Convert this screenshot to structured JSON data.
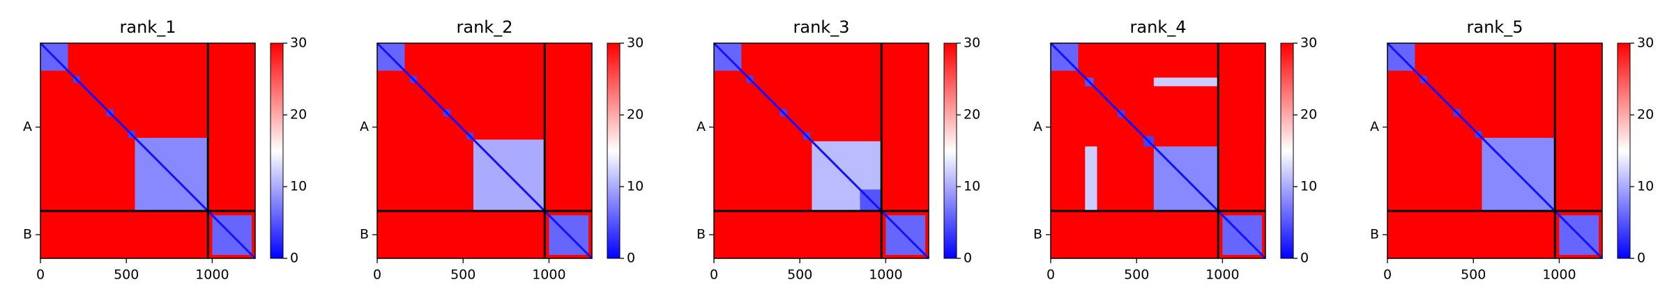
{
  "chart_data": [
    {
      "type": "heatmap",
      "title": "rank_1",
      "xlim": [
        0,
        1250
      ],
      "ylim": [
        1250,
        0
      ],
      "xticks": [
        0,
        500,
        1000
      ],
      "chains": [
        "A",
        "B"
      ],
      "chain_breaks": [
        975
      ],
      "clim": [
        0,
        30
      ],
      "cticks": [
        0,
        10,
        20,
        30
      ],
      "colormap": [
        "#0000ff",
        "#ffffff",
        "#ff0000"
      ],
      "background": 30,
      "diagonal": 1,
      "regions": [
        {
          "x": [
            0,
            160
          ],
          "y": [
            0,
            160
          ],
          "value": 6
        },
        {
          "x": [
            190,
            230
          ],
          "y": [
            190,
            230
          ],
          "value": 4
        },
        {
          "x": [
            385,
            425
          ],
          "y": [
            385,
            425
          ],
          "value": 4
        },
        {
          "x": [
            510,
            550
          ],
          "y": [
            510,
            550
          ],
          "value": 4
        },
        {
          "x": [
            550,
            975
          ],
          "y": [
            550,
            975
          ],
          "value": 8
        },
        {
          "x": [
            1000,
            1230
          ],
          "y": [
            1000,
            1230
          ],
          "value": 6
        }
      ]
    },
    {
      "type": "heatmap",
      "title": "rank_2",
      "xlim": [
        0,
        1250
      ],
      "ylim": [
        1250,
        0
      ],
      "xticks": [
        0,
        500,
        1000
      ],
      "chains": [
        "A",
        "B"
      ],
      "chain_breaks": [
        975
      ],
      "clim": [
        0,
        30
      ],
      "cticks": [
        0,
        10,
        20,
        30
      ],
      "colormap": [
        "#0000ff",
        "#ffffff",
        "#ff0000"
      ],
      "background": 30,
      "diagonal": 1,
      "regions": [
        {
          "x": [
            0,
            160
          ],
          "y": [
            0,
            160
          ],
          "value": 6
        },
        {
          "x": [
            190,
            230
          ],
          "y": [
            190,
            230
          ],
          "value": 4
        },
        {
          "x": [
            385,
            425
          ],
          "y": [
            385,
            425
          ],
          "value": 4
        },
        {
          "x": [
            520,
            560
          ],
          "y": [
            520,
            560
          ],
          "value": 4
        },
        {
          "x": [
            560,
            975
          ],
          "y": [
            560,
            975
          ],
          "value": 10
        },
        {
          "x": [
            1000,
            1230
          ],
          "y": [
            1000,
            1230
          ],
          "value": 6
        }
      ]
    },
    {
      "type": "heatmap",
      "title": "rank_3",
      "xlim": [
        0,
        1250
      ],
      "ylim": [
        1250,
        0
      ],
      "xticks": [
        0,
        500,
        1000
      ],
      "chains": [
        "A",
        "B"
      ],
      "chain_breaks": [
        975
      ],
      "clim": [
        0,
        30
      ],
      "cticks": [
        0,
        10,
        20,
        30
      ],
      "colormap": [
        "#0000ff",
        "#ffffff",
        "#ff0000"
      ],
      "background": 30,
      "diagonal": 1,
      "regions": [
        {
          "x": [
            0,
            160
          ],
          "y": [
            0,
            160
          ],
          "value": 6
        },
        {
          "x": [
            190,
            230
          ],
          "y": [
            190,
            230
          ],
          "value": 4
        },
        {
          "x": [
            385,
            425
          ],
          "y": [
            385,
            425
          ],
          "value": 4
        },
        {
          "x": [
            520,
            560
          ],
          "y": [
            520,
            560
          ],
          "value": 4
        },
        {
          "x": [
            570,
            975
          ],
          "y": [
            570,
            975
          ],
          "value": 11
        },
        {
          "x": [
            850,
            975
          ],
          "y": [
            850,
            975
          ],
          "value": 5
        },
        {
          "x": [
            1000,
            1230
          ],
          "y": [
            1000,
            1230
          ],
          "value": 6
        }
      ]
    },
    {
      "type": "heatmap",
      "title": "rank_4",
      "xlim": [
        0,
        1250
      ],
      "ylim": [
        1250,
        0
      ],
      "xticks": [
        0,
        500,
        1000
      ],
      "chains": [
        "A",
        "B"
      ],
      "chain_breaks": [
        975
      ],
      "clim": [
        0,
        30
      ],
      "cticks": [
        0,
        10,
        20,
        30
      ],
      "colormap": [
        "#0000ff",
        "#ffffff",
        "#ff0000"
      ],
      "background": 30,
      "diagonal": 1,
      "regions": [
        {
          "x": [
            0,
            160
          ],
          "y": [
            0,
            160
          ],
          "value": 6
        },
        {
          "x": [
            200,
            250
          ],
          "y": [
            200,
            250
          ],
          "value": 5
        },
        {
          "x": [
            390,
            430
          ],
          "y": [
            390,
            430
          ],
          "value": 4
        },
        {
          "x": [
            540,
            600
          ],
          "y": [
            540,
            600
          ],
          "value": 4
        },
        {
          "x": [
            600,
            975
          ],
          "y": [
            600,
            975
          ],
          "value": 8
        },
        {
          "x": [
            600,
            975
          ],
          "y": [
            200,
            250
          ],
          "value": 12
        },
        {
          "x": [
            200,
            270
          ],
          "y": [
            600,
            975
          ],
          "value": 12
        },
        {
          "x": [
            1000,
            1230
          ],
          "y": [
            1000,
            1230
          ],
          "value": 6
        }
      ]
    },
    {
      "type": "heatmap",
      "title": "rank_5",
      "xlim": [
        0,
        1250
      ],
      "ylim": [
        1250,
        0
      ],
      "xticks": [
        0,
        500,
        1000
      ],
      "chains": [
        "A",
        "B"
      ],
      "chain_breaks": [
        975
      ],
      "clim": [
        0,
        30
      ],
      "cticks": [
        0,
        10,
        20,
        30
      ],
      "colormap": [
        "#0000ff",
        "#ffffff",
        "#ff0000"
      ],
      "background": 30,
      "diagonal": 1,
      "regions": [
        {
          "x": [
            0,
            160
          ],
          "y": [
            0,
            160
          ],
          "value": 6
        },
        {
          "x": [
            190,
            230
          ],
          "y": [
            190,
            230
          ],
          "value": 4
        },
        {
          "x": [
            385,
            425
          ],
          "y": [
            385,
            425
          ],
          "value": 4
        },
        {
          "x": [
            510,
            550
          ],
          "y": [
            510,
            550
          ],
          "value": 4
        },
        {
          "x": [
            550,
            975
          ],
          "y": [
            550,
            975
          ],
          "value": 8
        },
        {
          "x": [
            1000,
            1230
          ],
          "y": [
            1000,
            1230
          ],
          "value": 6
        }
      ]
    }
  ]
}
